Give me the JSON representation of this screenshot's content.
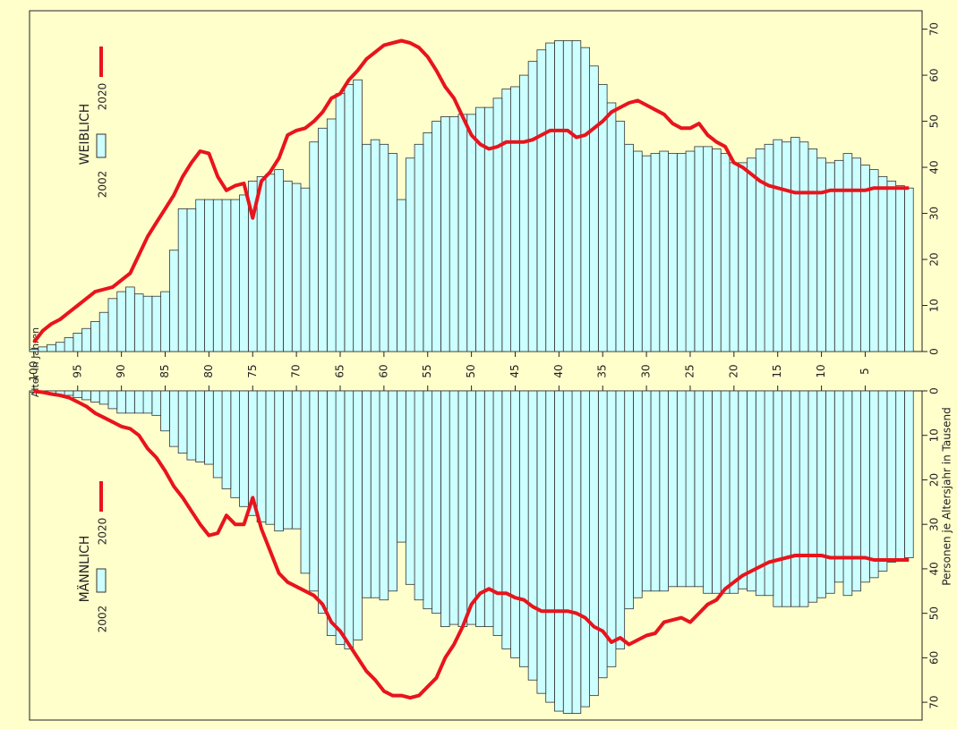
{
  "chart_data": {
    "type": "pyramid",
    "xlabel": "Alter in Jahren",
    "ylabel": "Personen je Altersjahr in Tausend",
    "x": [
      0,
      1,
      2,
      3,
      4,
      5,
      6,
      7,
      8,
      9,
      10,
      11,
      12,
      13,
      14,
      15,
      16,
      17,
      18,
      19,
      20,
      21,
      22,
      23,
      24,
      25,
      26,
      27,
      28,
      29,
      30,
      31,
      32,
      33,
      34,
      35,
      36,
      37,
      38,
      39,
      40,
      41,
      42,
      43,
      44,
      45,
      46,
      47,
      48,
      49,
      50,
      51,
      52,
      53,
      54,
      55,
      56,
      57,
      58,
      59,
      60,
      61,
      62,
      63,
      64,
      65,
      66,
      67,
      68,
      69,
      70,
      71,
      72,
      73,
      74,
      75,
      76,
      77,
      78,
      79,
      80,
      81,
      82,
      83,
      84,
      85,
      86,
      87,
      88,
      89,
      90,
      91,
      92,
      93,
      94,
      95,
      96,
      97,
      98,
      99,
      100
    ],
    "xlim": [
      100.5,
      -1.5
    ],
    "xticks": [
      5,
      10,
      15,
      20,
      25,
      30,
      35,
      40,
      45,
      50,
      55,
      60,
      65,
      70,
      75,
      80,
      85,
      90,
      95,
      100
    ],
    "ylim": [
      0,
      74
    ],
    "yticks": [
      0,
      10,
      20,
      30,
      40,
      50,
      60,
      70
    ],
    "panels": [
      {
        "title": "WEIBLICH",
        "direction": "up",
        "series": [
          {
            "name": "2002",
            "type": "bar",
            "color": "#ccffff",
            "values": [
              35.5,
              36,
              37,
              38,
              39.5,
              40.5,
              42,
              43,
              41.5,
              41,
              42,
              44,
              45.5,
              46.5,
              45.5,
              46,
              45,
              44,
              42,
              41,
              41,
              43,
              44,
              44.5,
              44.5,
              43.5,
              43,
              43,
              43.5,
              43,
              42.5,
              43.5,
              45,
              50,
              54,
              58,
              62,
              66,
              67.5,
              67.5,
              67.5,
              67,
              65.5,
              63,
              60,
              57.5,
              57,
              55,
              53,
              53,
              51.5,
              51.5,
              51,
              51,
              50,
              47.5,
              45,
              42,
              33,
              43,
              45,
              46,
              45,
              59,
              58,
              56,
              50.5,
              48.5,
              45.5,
              35.5,
              36.5,
              37,
              39.5,
              38.5,
              38,
              37,
              34,
              33,
              33,
              33,
              33,
              33,
              31,
              31,
              22,
              13,
              12,
              12,
              12.5,
              14,
              13,
              11.5,
              8.5,
              6.5,
              5,
              4,
              3,
              2,
              1.5,
              1,
              0.5
            ]
          },
          {
            "name": "2020",
            "type": "line",
            "color": "#e8141c",
            "values": [
              35.5,
              35.5,
              35.5,
              35.5,
              35.5,
              35,
              35,
              35,
              35,
              35,
              34.5,
              34.5,
              34.5,
              34.5,
              35,
              35.5,
              36,
              37,
              38.5,
              40,
              41,
              44.5,
              45.5,
              47,
              49.5,
              48.5,
              48.5,
              49.5,
              51.5,
              52.5,
              53.5,
              54.5,
              54,
              53,
              52,
              50,
              48.5,
              47,
              46.5,
              48,
              48,
              48,
              47,
              46,
              45.5,
              45.5,
              45.5,
              44.5,
              44,
              45,
              47,
              51,
              55,
              57.5,
              61,
              64,
              66,
              67,
              67.5,
              67,
              66.5,
              65,
              63.5,
              61,
              59,
              56,
              55,
              52,
              50,
              48.5,
              48,
              47,
              42,
              39,
              37,
              29,
              36.5,
              36,
              35,
              38,
              43,
              43.5,
              41,
              38,
              34,
              31,
              28,
              25,
              21,
              17,
              15.5,
              14,
              13.5,
              13,
              11.5,
              10,
              8.5,
              7,
              6,
              4.5,
              2
            ]
          }
        ]
      },
      {
        "title": "MÄNNLICH",
        "direction": "down",
        "series": [
          {
            "name": "2002",
            "type": "bar",
            "color": "#ccffff",
            "values": [
              37.5,
              38,
              38.5,
              40.5,
              42,
              43,
              45,
              46,
              43,
              45.5,
              46.5,
              47.5,
              48.5,
              48.5,
              48.5,
              48.5,
              46,
              46,
              45,
              44.5,
              45.5,
              45.5,
              45.5,
              45.5,
              44,
              44,
              44,
              44,
              45,
              45,
              45,
              46.5,
              49,
              58,
              62,
              64.5,
              68.5,
              71,
              72.5,
              72.5,
              72,
              70,
              68,
              65,
              62,
              60,
              58,
              55,
              53,
              53,
              52.5,
              53,
              52.5,
              53,
              50,
              49,
              47,
              43.5,
              34,
              45,
              47,
              46.5,
              46.5,
              56,
              58,
              57,
              55,
              50,
              45,
              41,
              31,
              31,
              31.5,
              30,
              29.5,
              28,
              26,
              24,
              22,
              19.5,
              16.5,
              16,
              15.5,
              14,
              12.5,
              9,
              5.5,
              5,
              5,
              5,
              5,
              4,
              3,
              2.5,
              2,
              1.5,
              1,
              1,
              0.7,
              0.5,
              0.3
            ]
          },
          {
            "name": "2020",
            "type": "line",
            "color": "#e8141c",
            "values": [
              38,
              38,
              38,
              38,
              38,
              37.5,
              37.5,
              37.5,
              37.5,
              37.5,
              37,
              37,
              37,
              37,
              37.5,
              38,
              38.5,
              39.5,
              40.5,
              41.5,
              43,
              44.5,
              47,
              48,
              50,
              52,
              51,
              51.5,
              52,
              54.5,
              55,
              56,
              57,
              55.5,
              56.5,
              54,
              53,
              51,
              50,
              49.5,
              49.5,
              49.5,
              49.5,
              48.5,
              47,
              46.5,
              45.5,
              45.5,
              44.5,
              45.5,
              48,
              53,
              57,
              60,
              64.5,
              66.5,
              68.5,
              69,
              68.5,
              68.5,
              67.5,
              65,
              63,
              60,
              57,
              54,
              52,
              48,
              46,
              45,
              44,
              43,
              41,
              36,
              31,
              24,
              30,
              30,
              28,
              32,
              32.5,
              30,
              27,
              24,
              21.5,
              18,
              15,
              13,
              10,
              8.5,
              8,
              7,
              6,
              5,
              3.5,
              2.5,
              1.5,
              1,
              0.7,
              0.3,
              0.1
            ]
          }
        ]
      }
    ]
  }
}
